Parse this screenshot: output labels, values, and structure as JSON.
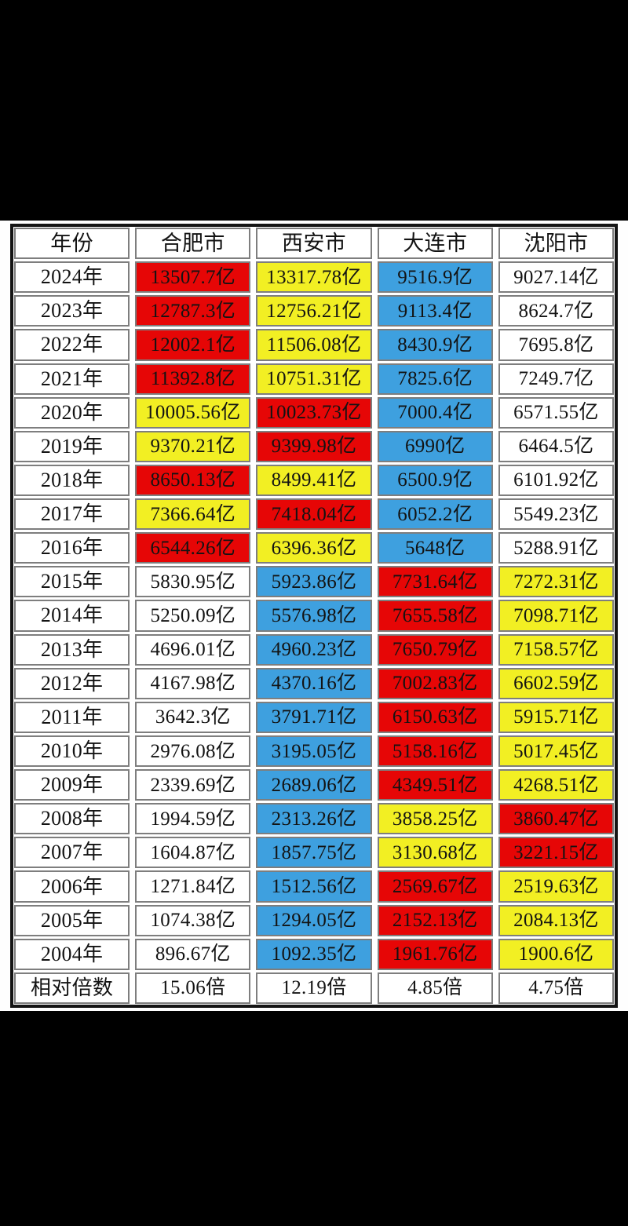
{
  "colors": {
    "red": "#e60606",
    "yellow": "#f2ef23",
    "blue": "#3ea0df",
    "white": "#ffffff",
    "page_background": "#000000",
    "table_background": "#ffffff"
  },
  "table": {
    "headers": [
      "年份",
      "合肥市",
      "西安市",
      "大连市",
      "沈阳市"
    ],
    "rows": [
      {
        "year": "2024年",
        "values": [
          "13507.7亿",
          "13317.78亿",
          "9516.9亿",
          "9027.14亿"
        ],
        "colors": [
          "red",
          "yellow",
          "blue",
          "white"
        ]
      },
      {
        "year": "2023年",
        "values": [
          "12787.3亿",
          "12756.21亿",
          "9113.4亿",
          "8624.7亿"
        ],
        "colors": [
          "red",
          "yellow",
          "blue",
          "white"
        ]
      },
      {
        "year": "2022年",
        "values": [
          "12002.1亿",
          "11506.08亿",
          "8430.9亿",
          "7695.8亿"
        ],
        "colors": [
          "red",
          "yellow",
          "blue",
          "white"
        ]
      },
      {
        "year": "2021年",
        "values": [
          "11392.8亿",
          "10751.31亿",
          "7825.6亿",
          "7249.7亿"
        ],
        "colors": [
          "red",
          "yellow",
          "blue",
          "white"
        ]
      },
      {
        "year": "2020年",
        "values": [
          "10005.56亿",
          "10023.73亿",
          "7000.4亿",
          "6571.55亿"
        ],
        "colors": [
          "yellow",
          "red",
          "blue",
          "white"
        ]
      },
      {
        "year": "2019年",
        "values": [
          "9370.21亿",
          "9399.98亿",
          "6990亿",
          "6464.5亿"
        ],
        "colors": [
          "yellow",
          "red",
          "blue",
          "white"
        ]
      },
      {
        "year": "2018年",
        "values": [
          "8650.13亿",
          "8499.41亿",
          "6500.9亿",
          "6101.92亿"
        ],
        "colors": [
          "red",
          "yellow",
          "blue",
          "white"
        ]
      },
      {
        "year": "2017年",
        "values": [
          "7366.64亿",
          "7418.04亿",
          "6052.2亿",
          "5549.23亿"
        ],
        "colors": [
          "yellow",
          "red",
          "blue",
          "white"
        ]
      },
      {
        "year": "2016年",
        "values": [
          "6544.26亿",
          "6396.36亿",
          "5648亿",
          "5288.91亿"
        ],
        "colors": [
          "red",
          "yellow",
          "blue",
          "white"
        ]
      },
      {
        "year": "2015年",
        "values": [
          "5830.95亿",
          "5923.86亿",
          "7731.64亿",
          "7272.31亿"
        ],
        "colors": [
          "white",
          "blue",
          "red",
          "yellow"
        ]
      },
      {
        "year": "2014年",
        "values": [
          "5250.09亿",
          "5576.98亿",
          "7655.58亿",
          "7098.71亿"
        ],
        "colors": [
          "white",
          "blue",
          "red",
          "yellow"
        ]
      },
      {
        "year": "2013年",
        "values": [
          "4696.01亿",
          "4960.23亿",
          "7650.79亿",
          "7158.57亿"
        ],
        "colors": [
          "white",
          "blue",
          "red",
          "yellow"
        ]
      },
      {
        "year": "2012年",
        "values": [
          "4167.98亿",
          "4370.16亿",
          "7002.83亿",
          "6602.59亿"
        ],
        "colors": [
          "white",
          "blue",
          "red",
          "yellow"
        ]
      },
      {
        "year": "2011年",
        "values": [
          "3642.3亿",
          "3791.71亿",
          "6150.63亿",
          "5915.71亿"
        ],
        "colors": [
          "white",
          "blue",
          "red",
          "yellow"
        ]
      },
      {
        "year": "2010年",
        "values": [
          "2976.08亿",
          "3195.05亿",
          "5158.16亿",
          "5017.45亿"
        ],
        "colors": [
          "white",
          "blue",
          "red",
          "yellow"
        ]
      },
      {
        "year": "2009年",
        "values": [
          "2339.69亿",
          "2689.06亿",
          "4349.51亿",
          "4268.51亿"
        ],
        "colors": [
          "white",
          "blue",
          "red",
          "yellow"
        ]
      },
      {
        "year": "2008年",
        "values": [
          "1994.59亿",
          "2313.26亿",
          "3858.25亿",
          "3860.47亿"
        ],
        "colors": [
          "white",
          "blue",
          "yellow",
          "red"
        ]
      },
      {
        "year": "2007年",
        "values": [
          "1604.87亿",
          "1857.75亿",
          "3130.68亿",
          "3221.15亿"
        ],
        "colors": [
          "white",
          "blue",
          "yellow",
          "red"
        ]
      },
      {
        "year": "2006年",
        "values": [
          "1271.84亿",
          "1512.56亿",
          "2569.67亿",
          "2519.63亿"
        ],
        "colors": [
          "white",
          "blue",
          "red",
          "yellow"
        ]
      },
      {
        "year": "2005年",
        "values": [
          "1074.38亿",
          "1294.05亿",
          "2152.13亿",
          "2084.13亿"
        ],
        "colors": [
          "white",
          "blue",
          "red",
          "yellow"
        ]
      },
      {
        "year": "2004年",
        "values": [
          "896.67亿",
          "1092.35亿",
          "1961.76亿",
          "1900.6亿"
        ],
        "colors": [
          "white",
          "blue",
          "red",
          "yellow"
        ]
      }
    ],
    "footer": {
      "label": "相对倍数",
      "values": [
        "15.06倍",
        "12.19倍",
        "4.85倍",
        "4.75倍"
      ],
      "colors": [
        "white",
        "white",
        "white",
        "white"
      ]
    }
  },
  "chart_data": {
    "type": "table",
    "title": "",
    "categories": [
      "2024",
      "2023",
      "2022",
      "2021",
      "2020",
      "2019",
      "2018",
      "2017",
      "2016",
      "2015",
      "2014",
      "2013",
      "2012",
      "2011",
      "2010",
      "2009",
      "2008",
      "2007",
      "2006",
      "2005",
      "2004"
    ],
    "unit": "亿",
    "series": [
      {
        "name": "合肥市",
        "values": [
          13507.7,
          12787.3,
          12002.1,
          11392.8,
          10005.56,
          9370.21,
          8650.13,
          7366.64,
          6544.26,
          5830.95,
          5250.09,
          4696.01,
          4167.98,
          3642.3,
          2976.08,
          2339.69,
          1994.59,
          1604.87,
          1271.84,
          1074.38,
          896.67
        ],
        "relative_multiple": "15.06倍"
      },
      {
        "name": "西安市",
        "values": [
          13317.78,
          12756.21,
          11506.08,
          10751.31,
          10023.73,
          9399.98,
          8499.41,
          7418.04,
          6396.36,
          5923.86,
          5576.98,
          4960.23,
          4370.16,
          3791.71,
          3195.05,
          2689.06,
          2313.26,
          1857.75,
          1512.56,
          1294.05,
          1092.35
        ],
        "relative_multiple": "12.19倍"
      },
      {
        "name": "大连市",
        "values": [
          9516.9,
          9113.4,
          8430.9,
          7825.6,
          7000.4,
          6990,
          6500.9,
          6052.2,
          5648,
          7731.64,
          7655.58,
          7650.79,
          7002.83,
          6150.63,
          5158.16,
          4349.51,
          3858.25,
          3130.68,
          2569.67,
          2152.13,
          1961.76
        ],
        "relative_multiple": "4.85倍"
      },
      {
        "name": "沈阳市",
        "values": [
          9027.14,
          8624.7,
          7695.8,
          7249.7,
          6571.55,
          6464.5,
          6101.92,
          5549.23,
          5288.91,
          7272.31,
          7098.71,
          7158.57,
          6602.59,
          5915.71,
          5017.45,
          4268.51,
          3860.47,
          3221.15,
          2519.63,
          2084.13,
          1900.6
        ],
        "relative_multiple": "4.75倍"
      }
    ],
    "legend_note": "cell color encodes rank among the four cities for that year: red=1st, yellow=2nd, blue=3rd, white=4th"
  }
}
